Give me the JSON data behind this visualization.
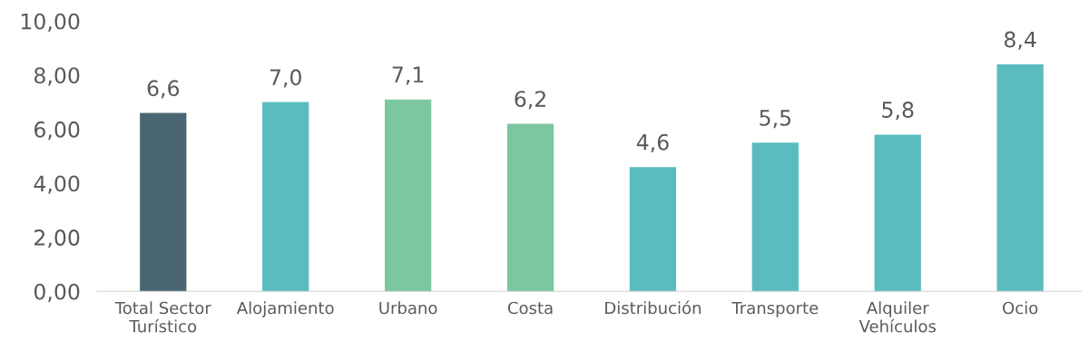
{
  "chart_data": {
    "type": "bar",
    "categories": [
      "Total Sector\nTurístico",
      "Alojamiento",
      "Urbano",
      "Costa",
      "Distribución",
      "Transporte",
      "Alquiler\nVehículos",
      "Ocio"
    ],
    "values": [
      6.6,
      7.0,
      7.1,
      6.2,
      4.6,
      5.5,
      5.8,
      8.4
    ],
    "colors": [
      "#4a6673",
      "#5bbcc0",
      "#7cc6a0",
      "#7cc6a0",
      "#5bbcc0",
      "#5bbcc0",
      "#5bbcc0",
      "#5bbcc0"
    ],
    "value_labels": [
      "6,6",
      "7,0",
      "7,1",
      "6,2",
      "4,6",
      "5,5",
      "5,8",
      "8,4"
    ],
    "ylim": [
      0,
      10
    ],
    "yticks": [
      {
        "value": 0,
        "label": "0,00"
      },
      {
        "value": 2,
        "label": "2,00"
      },
      {
        "value": 4,
        "label": "4,00"
      },
      {
        "value": 6,
        "label": "6,00"
      },
      {
        "value": 8,
        "label": "8,00"
      },
      {
        "value": 10,
        "label": "10,00"
      }
    ],
    "grid": false,
    "legend": false
  }
}
